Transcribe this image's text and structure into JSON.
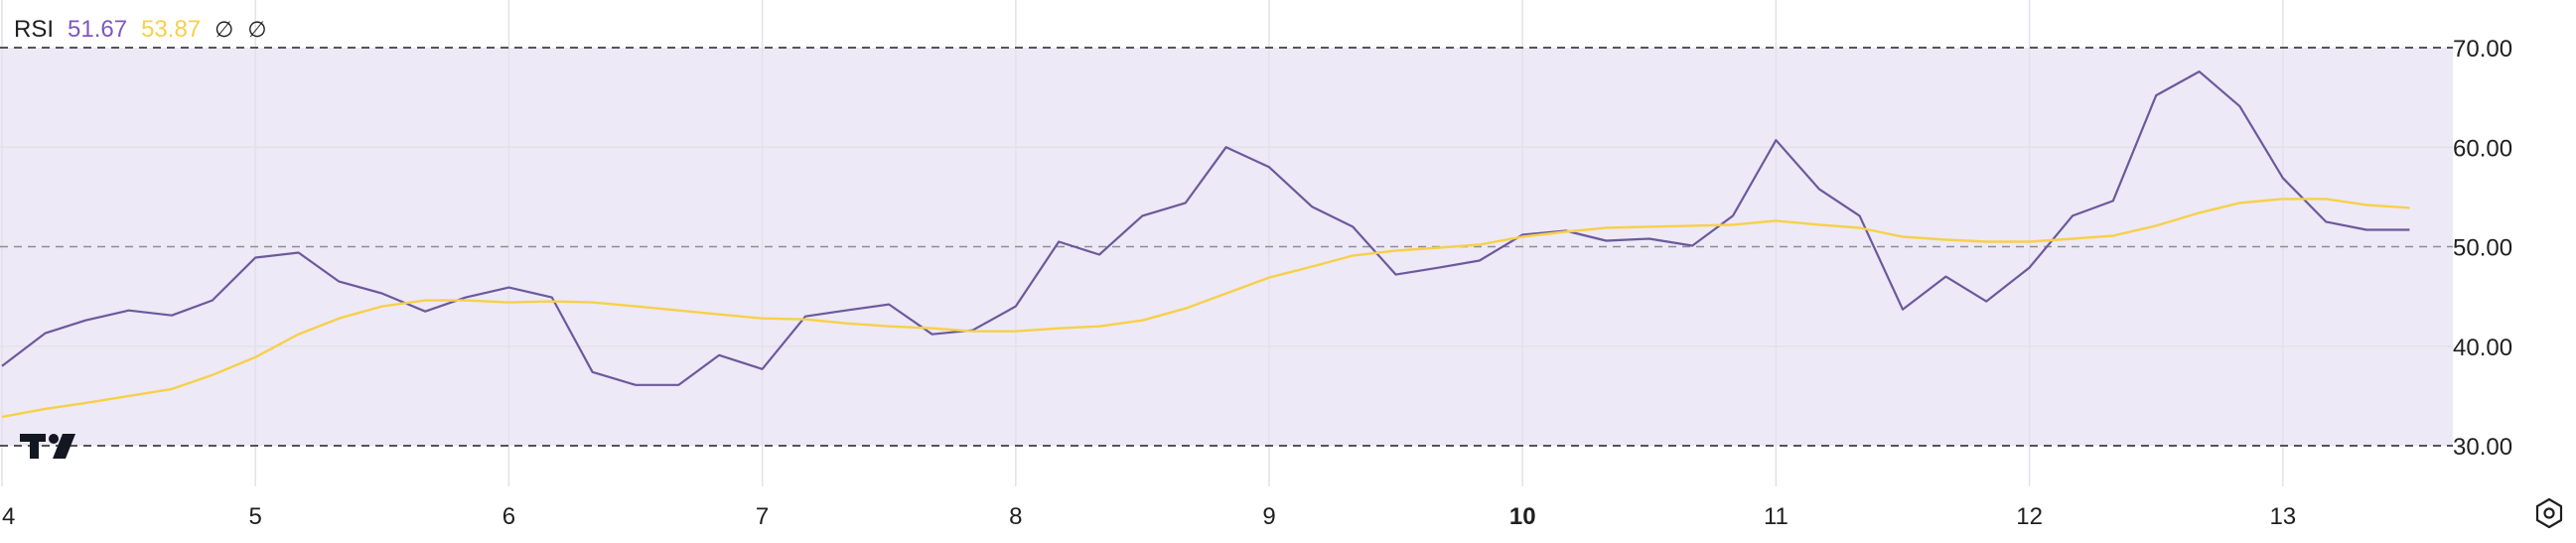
{
  "legend": {
    "name": "RSI",
    "rsi_value": "51.67",
    "ma_value": "53.87",
    "na_1": "∅",
    "na_2": "∅"
  },
  "colors": {
    "band": "#ede9f6",
    "rsi_line": "#6a5a9c",
    "ma_line": "#f7d04a",
    "grid": "#e3e1ea",
    "dash": "#555555",
    "axis_text": "#1f1f1f"
  },
  "icons": {
    "logo": "tradingview-logo",
    "settings": "settings-icon"
  },
  "chart_data": {
    "type": "line",
    "x_ticks": [
      {
        "label": "4",
        "x": 4,
        "bold": false
      },
      {
        "label": "5",
        "x": 5,
        "bold": false
      },
      {
        "label": "6",
        "x": 6,
        "bold": false
      },
      {
        "label": "7",
        "x": 7,
        "bold": false
      },
      {
        "label": "8",
        "x": 8,
        "bold": false
      },
      {
        "label": "9",
        "x": 9,
        "bold": false
      },
      {
        "label": "10",
        "x": 10,
        "bold": true
      },
      {
        "label": "11",
        "x": 11,
        "bold": false
      },
      {
        "label": "12",
        "x": 12,
        "bold": false
      },
      {
        "label": "13",
        "x": 13,
        "bold": false
      }
    ],
    "y_ticks": [
      "70.00",
      "60.00",
      "50.00",
      "40.00",
      "30.00"
    ],
    "ylim": [
      30,
      70
    ],
    "xlim": [
      4,
      13.75
    ],
    "bands": {
      "upper": 70,
      "middle": 50,
      "lower": 30
    },
    "grid": true,
    "legend_position": "top-left",
    "series": [
      {
        "key": "rsi",
        "x": [
          4.0,
          4.17,
          4.33,
          4.5,
          4.67,
          4.83,
          5.0,
          5.17,
          5.33,
          5.5,
          5.67,
          5.83,
          6.0,
          6.17,
          6.33,
          6.5,
          6.67,
          6.83,
          7.0,
          7.17,
          7.33,
          7.5,
          7.67,
          7.83,
          8.0,
          8.17,
          8.33,
          8.5,
          8.67,
          8.83,
          9.0,
          9.17,
          9.33,
          9.5,
          9.67,
          9.83,
          10.0,
          10.17,
          10.33,
          10.5,
          10.67,
          10.83,
          11.0,
          11.17,
          11.33,
          11.5,
          11.67,
          11.83,
          12.0,
          12.17,
          12.33,
          12.5,
          12.67,
          12.83,
          13.0,
          13.17,
          13.33,
          13.5
        ],
        "values": [
          38.0,
          41.3,
          42.6,
          43.6,
          43.1,
          44.6,
          48.9,
          49.4,
          46.5,
          45.3,
          43.5,
          44.9,
          45.9,
          44.9,
          37.4,
          36.1,
          36.1,
          39.1,
          37.7,
          43.0,
          43.6,
          44.2,
          41.2,
          41.6,
          44.0,
          50.5,
          49.2,
          53.1,
          54.4,
          60.0,
          58.0,
          54.0,
          52.0,
          47.2,
          47.9,
          48.6,
          51.2,
          51.6,
          50.6,
          50.8,
          50.1,
          53.1,
          60.7,
          55.8,
          53.1,
          43.7,
          47.0,
          44.5,
          47.9,
          53.1,
          54.6,
          65.2,
          67.6,
          64.1,
          56.9,
          52.5,
          51.7,
          51.7
        ]
      },
      {
        "key": "ma",
        "x": [
          4.0,
          4.17,
          4.33,
          4.5,
          4.67,
          4.83,
          5.0,
          5.17,
          5.33,
          5.5,
          5.67,
          5.83,
          6.0,
          6.17,
          6.33,
          6.5,
          6.67,
          6.83,
          7.0,
          7.17,
          7.33,
          7.5,
          7.67,
          7.83,
          8.0,
          8.17,
          8.33,
          8.5,
          8.67,
          8.83,
          9.0,
          9.17,
          9.33,
          9.5,
          9.67,
          9.83,
          10.0,
          10.17,
          10.33,
          10.5,
          10.67,
          10.83,
          11.0,
          11.17,
          11.33,
          11.5,
          11.67,
          11.83,
          12.0,
          12.17,
          12.33,
          12.5,
          12.67,
          12.83,
          13.0,
          13.17,
          13.33,
          13.5
        ],
        "values": [
          32.9,
          33.7,
          34.3,
          35.0,
          35.7,
          37.1,
          38.9,
          41.2,
          42.8,
          44.0,
          44.6,
          44.6,
          44.4,
          44.5,
          44.4,
          44.0,
          43.6,
          43.2,
          42.8,
          42.7,
          42.3,
          42.0,
          41.8,
          41.5,
          41.5,
          41.8,
          42.0,
          42.6,
          43.8,
          45.3,
          46.9,
          48.0,
          49.1,
          49.6,
          49.9,
          50.2,
          51.0,
          51.5,
          51.9,
          52.0,
          52.1,
          52.2,
          52.6,
          52.2,
          51.9,
          51.0,
          50.7,
          50.5,
          50.5,
          50.8,
          51.1,
          52.1,
          53.4,
          54.4,
          54.8,
          54.8,
          54.2,
          53.9
        ]
      }
    ]
  }
}
